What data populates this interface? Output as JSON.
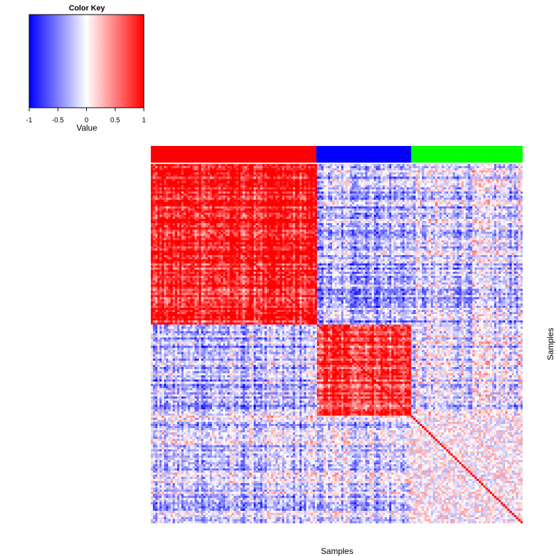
{
  "chart_data": {
    "type": "heatmap",
    "title": "",
    "xlabel": "Samples",
    "ylabel": "Samples",
    "color_key": {
      "title": "Color Key",
      "label": "Value",
      "range": [
        -1,
        1
      ],
      "ticks": [
        "-1",
        "-0.5",
        "0",
        "0.5",
        "1"
      ],
      "colors": [
        "#0000ff",
        "#ffffff",
        "#ff0000"
      ]
    },
    "groups": [
      {
        "color": "#ff0000",
        "fraction": 0.445
      },
      {
        "color": "#0000ff",
        "fraction": 0.255
      },
      {
        "color": "#00ff00",
        "fraction": 0.3
      }
    ],
    "block_mean_correlation": [
      [
        0.85,
        -0.3,
        -0.18
      ],
      [
        -0.3,
        0.75,
        -0.12
      ],
      [
        -0.18,
        -0.12,
        0.05
      ]
    ],
    "diagonal_value": 1
  }
}
